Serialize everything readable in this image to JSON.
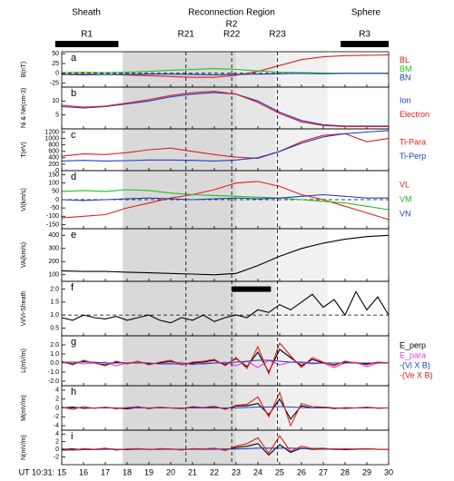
{
  "header": {
    "left": "Sheath",
    "center": "Reconnection Region",
    "center_sub": "R2",
    "right": "Sphere",
    "intervals": [
      {
        "label": "R1",
        "start": 14.7,
        "end": 17.6
      },
      {
        "label": "R3",
        "start": 27.8,
        "end": 30
      }
    ],
    "boundaries": [
      {
        "label": "R21",
        "time": 20.7
      },
      {
        "label": "R22",
        "time": 22.8
      },
      {
        "label": "R23",
        "time": 24.9
      }
    ]
  },
  "shading": [
    {
      "start": 17.8,
      "end": 23,
      "color": "#d9d9d9"
    },
    {
      "start": 23,
      "end": 24.8,
      "color": "#e6e6e6"
    },
    {
      "start": 24.8,
      "end": 27.2,
      "color": "#f1f1f1"
    }
  ],
  "chart_data": [
    {
      "type": "line",
      "panel_label": "a",
      "ylabel": "B(nT)",
      "xlim": [
        15,
        30
      ],
      "ylim": [
        -35,
        55
      ],
      "yticks": [
        -25,
        0,
        25,
        50
      ],
      "reference_line": 0,
      "x": [
        15,
        16,
        17,
        18,
        19,
        20,
        21,
        22,
        23,
        24,
        25,
        26,
        27,
        28,
        29,
        30
      ],
      "series": [
        {
          "name": "BL",
          "color": "#e02020",
          "values": [
            -3,
            -2,
            -3,
            -4,
            -6,
            -8,
            -10,
            -10,
            -5,
            5,
            20,
            35,
            42,
            45,
            46,
            47
          ]
        },
        {
          "name": "BM",
          "color": "#20c020",
          "values": [
            2,
            3,
            2,
            3,
            5,
            8,
            10,
            12,
            10,
            6,
            3,
            2,
            1,
            0,
            0,
            0
          ]
        },
        {
          "name": "BN",
          "color": "#2040c0",
          "values": [
            -3,
            -4,
            -3,
            -3,
            -2,
            -2,
            -3,
            -4,
            -3,
            -2,
            -1,
            0,
            -1,
            0,
            0,
            0
          ]
        }
      ]
    },
    {
      "type": "line",
      "panel_label": "b",
      "ylabel": "Ni & Ne(cm-3)",
      "xlim": [
        15,
        30
      ],
      "ylim": [
        0,
        15
      ],
      "yticks": [
        5,
        10
      ],
      "x": [
        15,
        16,
        17,
        18,
        19,
        20,
        21,
        22,
        23,
        24,
        25,
        26,
        27,
        28,
        29,
        30
      ],
      "series": [
        {
          "name": "Ion",
          "color": "#2040c0",
          "values": [
            8,
            7.5,
            8,
            9,
            10,
            11.5,
            12.5,
            13,
            12.5,
            10,
            6,
            3,
            1.5,
            1,
            1,
            1
          ]
        },
        {
          "name": "Electron",
          "color": "#e02020",
          "values": [
            8.5,
            7.8,
            8.2,
            9.3,
            10.5,
            12,
            13,
            13.5,
            12.5,
            9.5,
            5.5,
            2.5,
            1.2,
            0.8,
            0.8,
            0.8
          ]
        }
      ]
    },
    {
      "type": "line",
      "panel_label": "c",
      "ylabel": "T(eV)",
      "xlim": [
        15,
        30
      ],
      "ylim": [
        0,
        1300
      ],
      "yticks": [
        0,
        200,
        400,
        600,
        800,
        1000,
        1200
      ],
      "x": [
        15,
        16,
        17,
        18,
        19,
        20,
        21,
        22,
        23,
        24,
        25,
        26,
        27,
        28,
        29,
        30
      ],
      "series": [
        {
          "name": "Ti-Para",
          "color": "#e02020",
          "values": [
            450,
            520,
            500,
            560,
            650,
            700,
            600,
            500,
            420,
            380,
            600,
            900,
            1100,
            1150,
            900,
            1000
          ]
        },
        {
          "name": "Ti-Perp",
          "color": "#2040c0",
          "values": [
            300,
            320,
            300,
            310,
            330,
            330,
            320,
            300,
            330,
            400,
            600,
            850,
            1050,
            1150,
            1200,
            1250
          ]
        }
      ]
    },
    {
      "type": "line",
      "panel_label": "d",
      "ylabel": "Vi(km/s)",
      "xlim": [
        15,
        30
      ],
      "ylim": [
        -175,
        175
      ],
      "yticks": [
        -150,
        -100,
        -50,
        0,
        50,
        100,
        150
      ],
      "reference_line": 0,
      "x": [
        15,
        16,
        17,
        18,
        19,
        20,
        21,
        22,
        23,
        24,
        25,
        26,
        27,
        28,
        29,
        30
      ],
      "series": [
        {
          "name": "VL",
          "color": "#e02020",
          "values": [
            -110,
            -100,
            -90,
            -50,
            -20,
            10,
            30,
            60,
            100,
            110,
            80,
            30,
            0,
            -40,
            -80,
            -120
          ]
        },
        {
          "name": "VM",
          "color": "#20c020",
          "values": [
            50,
            55,
            50,
            60,
            55,
            40,
            30,
            25,
            20,
            15,
            10,
            0,
            -10,
            -20,
            -40,
            -60
          ]
        },
        {
          "name": "VN",
          "color": "#2040c0",
          "values": [
            0,
            -5,
            0,
            5,
            10,
            5,
            0,
            5,
            10,
            5,
            10,
            20,
            30,
            20,
            10,
            10
          ]
        }
      ]
    },
    {
      "type": "line",
      "panel_label": "e",
      "ylabel": "VA(km/s)",
      "xlim": [
        15,
        30
      ],
      "ylim": [
        50,
        450
      ],
      "yticks": [
        100,
        200,
        300,
        400
      ],
      "x": [
        15,
        16,
        17,
        18,
        19,
        20,
        21,
        22,
        23,
        24,
        25,
        26,
        27,
        28,
        29,
        30
      ],
      "series": [
        {
          "color": "#000000",
          "values": [
            130,
            125,
            125,
            120,
            115,
            110,
            105,
            100,
            110,
            170,
            240,
            300,
            340,
            370,
            390,
            400
          ]
        }
      ]
    },
    {
      "type": "line",
      "panel_label": "f",
      "ylabel": "Vi/Vi-Sheath",
      "xlim": [
        15,
        30
      ],
      "ylim": [
        0.2,
        2.3
      ],
      "yticks": [
        0.5,
        {
          "value": 1,
          "label": "1.0"
        },
        1.5,
        {
          "value": 2,
          "label": "2.0"
        }
      ],
      "reference_line": 1,
      "bar": {
        "start": 22.8,
        "end": 24.6,
        "level": 2
      },
      "x": [
        15,
        15.5,
        16,
        16.5,
        17,
        17.5,
        18,
        18.5,
        19,
        19.5,
        20,
        20.5,
        21,
        21.5,
        22,
        22.5,
        23,
        23.5,
        24,
        24.5,
        25,
        25.5,
        26,
        26.5,
        27,
        27.5,
        28,
        28.5,
        29,
        29.5,
        30
      ],
      "series": [
        {
          "color": "#000000",
          "values": [
            0.9,
            0.8,
            1.0,
            0.9,
            0.85,
            0.95,
            0.8,
            0.9,
            1.0,
            0.8,
            0.7,
            0.9,
            0.8,
            1.0,
            0.75,
            0.9,
            1.0,
            0.9,
            1.2,
            1.1,
            1.4,
            1.2,
            1.5,
            1.8,
            1.3,
            1.6,
            1.0,
            1.9,
            1.2,
            1.7,
            1.0
          ]
        }
      ]
    },
    {
      "type": "line",
      "panel_label": "g",
      "ylabel": "L(mV/m)",
      "xlim": [
        15,
        30
      ],
      "ylim": [
        -2.5,
        3
      ],
      "yticks": [
        {
          "value": -2,
          "label": "-2.0"
        },
        {
          "value": -1,
          "label": "-1.0"
        },
        {
          "value": 0,
          "label": "0.0"
        },
        {
          "value": 1,
          "label": "1.0"
        },
        {
          "value": 2,
          "label": "2.0"
        }
      ],
      "x": [
        15,
        15.5,
        16,
        16.5,
        17,
        17.5,
        18,
        18.5,
        19,
        19.5,
        20,
        20.5,
        21,
        21.5,
        22,
        22.5,
        23,
        23.5,
        24,
        24.5,
        25,
        25.5,
        26,
        26.5,
        27,
        27.5,
        28,
        28.5,
        29,
        29.5,
        30
      ],
      "series": [
        {
          "name": "E_perp",
          "color": "#000000",
          "values": [
            0.1,
            -0.1,
            0.2,
            0,
            -0.2,
            0.1,
            0,
            0.1,
            -0.1,
            0,
            0.2,
            -0.1,
            0,
            0.1,
            0.3,
            -0.2,
            0.5,
            -0.4,
            1.2,
            -1.0,
            1.5,
            0.6,
            -0.3,
            0.4,
            0,
            -0.2,
            0.1,
            0,
            -0.1,
            0.1,
            0
          ]
        },
        {
          "name": "E_para",
          "color": "#e040e0",
          "values": [
            0,
            0.1,
            -0.1,
            0,
            0.1,
            -0.3,
            0,
            0.1,
            0,
            -0.1,
            0,
            0.1,
            -0.2,
            0,
            0,
            0.1,
            -0.3,
            0.2,
            -0.5,
            0.3,
            -0.2,
            0.1,
            0,
            -0.1,
            0,
            -0.5,
            0,
            0.1,
            -0.4,
            0,
            0
          ]
        },
        {
          "name": "-(Vi X B)",
          "color": "#2040c0",
          "values": [
            0.1,
            0.1,
            0.1,
            0.1,
            0,
            0,
            0,
            0,
            0,
            -0.1,
            -0.1,
            -0.1,
            -0.1,
            -0.1,
            0,
            0,
            0.1,
            0.2,
            0.3,
            0.3,
            0.2,
            0.1,
            0.1,
            0,
            0,
            0,
            0,
            0,
            0,
            0,
            0
          ]
        },
        {
          "name": "-(Ve X B)",
          "color": "#e02020",
          "values": [
            0.2,
            -0.2,
            0.3,
            0,
            -0.3,
            0.2,
            -0.1,
            0.2,
            -0.2,
            0.1,
            0.3,
            -0.2,
            0.1,
            0.2,
            0.4,
            -0.3,
            0.6,
            -0.6,
            1.8,
            -1.2,
            2.2,
            0.8,
            -0.5,
            0.6,
            0.1,
            -0.3,
            0.2,
            0,
            -0.2,
            0.1,
            0
          ]
        }
      ]
    },
    {
      "type": "line",
      "panel_label": "h",
      "ylabel": "M(mV/m)",
      "xlim": [
        15,
        30
      ],
      "ylim": [
        -5,
        5
      ],
      "yticks": [
        -4,
        -2,
        0,
        2,
        4
      ],
      "x": [
        15,
        15.5,
        16,
        16.5,
        17,
        17.5,
        18,
        18.5,
        19,
        19.5,
        20,
        20.5,
        21,
        21.5,
        22,
        22.5,
        23,
        23.5,
        24,
        24.5,
        25,
        25.5,
        26,
        26.5,
        27,
        27.5,
        28,
        28.5,
        29,
        29.5,
        30
      ],
      "series": [
        {
          "color": "#000000",
          "values": [
            0,
            0.2,
            -0.1,
            0,
            0.1,
            0,
            -0.2,
            0.1,
            0,
            0.1,
            0,
            -0.1,
            0.2,
            0,
            0.3,
            -0.2,
            0.4,
            0.5,
            1.0,
            -1.5,
            2.0,
            -2.5,
            0.5,
            0,
            0.2,
            0,
            -0.1,
            0,
            0.1,
            0,
            0
          ]
        },
        {
          "color": "#2040c0",
          "values": [
            0,
            0,
            0,
            0,
            0,
            0,
            0,
            0,
            0,
            0,
            0,
            0,
            0,
            0,
            0,
            0,
            0,
            0.1,
            0.2,
            0.2,
            0.3,
            0.2,
            0.1,
            0,
            0,
            0,
            0,
            0,
            0,
            0,
            0
          ]
        },
        {
          "color": "#e02020",
          "values": [
            0.2,
            -0.3,
            0.3,
            -0.1,
            0.2,
            -0.2,
            0.1,
            0.3,
            -0.2,
            0.2,
            0,
            -0.2,
            0.3,
            0.1,
            0.4,
            -0.3,
            0.6,
            0.8,
            2.5,
            -2.0,
            3.5,
            -4.0,
            1.0,
            0.3,
            0.2,
            -0.2,
            0.1,
            0,
            0.2,
            -0.1,
            0
          ]
        }
      ]
    },
    {
      "type": "line",
      "panel_label": "i",
      "ylabel": "N(mV/m)",
      "xlabel": "UT 10:31:",
      "xlim": [
        15,
        30
      ],
      "ylim": [
        -4,
        5
      ],
      "yticks": [
        -2,
        0,
        2,
        4
      ],
      "xticks": [
        15,
        16,
        17,
        18,
        19,
        20,
        21,
        22,
        23,
        24,
        25,
        26,
        27,
        28,
        29,
        30
      ],
      "x": [
        15,
        15.5,
        16,
        16.5,
        17,
        17.5,
        18,
        18.5,
        19,
        19.5,
        20,
        20.5,
        21,
        21.5,
        22,
        22.5,
        23,
        23.5,
        24,
        24.5,
        25,
        25.5,
        26,
        26.5,
        27,
        27.5,
        28,
        28.5,
        29,
        29.5,
        30
      ],
      "series": [
        {
          "color": "#000000",
          "values": [
            0,
            0.1,
            -0.1,
            0,
            0.2,
            0,
            -0.1,
            0.1,
            0,
            0,
            0.1,
            -0.1,
            0.1,
            0,
            0.2,
            -0.2,
            0.5,
            0.8,
            1.5,
            -1.5,
            1.2,
            -0.8,
            0.3,
            0,
            0.1,
            0,
            -0.1,
            0,
            0.1,
            0,
            0
          ]
        },
        {
          "color": "#2040c0",
          "values": [
            -0.2,
            -0.2,
            -0.1,
            -0.1,
            0,
            0,
            0,
            0,
            0,
            0,
            0,
            0,
            0,
            0,
            0,
            0.1,
            0.1,
            0.2,
            0.3,
            0.3,
            0.3,
            0.3,
            0.2,
            0.2,
            0.2,
            0.1,
            0.1,
            0.1,
            0.1,
            0,
            0
          ]
        },
        {
          "color": "#e02020",
          "values": [
            0.2,
            -0.2,
            0.2,
            0,
            0.3,
            -0.2,
            0.1,
            0.2,
            -0.1,
            0.2,
            0.1,
            -0.2,
            0.2,
            0.1,
            0.3,
            -0.3,
            0.8,
            1.5,
            3.0,
            -1.0,
            3.5,
            -0.5,
            0.8,
            0.2,
            0.3,
            -0.1,
            0.1,
            0,
            0.2,
            0,
            0
          ]
        }
      ]
    }
  ]
}
